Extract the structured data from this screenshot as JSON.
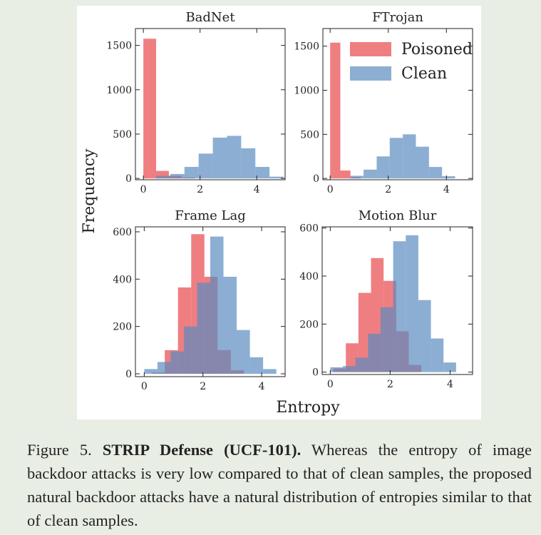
{
  "figure": {
    "xlabel": "Entropy",
    "ylabel": "Frequency"
  },
  "chart_data": [
    {
      "type": "histogram",
      "title": "BadNet",
      "xlim": [
        -0.28,
        5.0
      ],
      "ylim": [
        -15,
        1690
      ],
      "xticks": [
        0,
        2,
        4
      ],
      "yticks": [
        0,
        500,
        1000,
        1500
      ],
      "series": [
        {
          "color": "#e8474c",
          "alpha": 0.7,
          "bins": [
            0,
            0.45,
            0.9,
            1.35,
            1.8
          ],
          "values": [
            1575,
            85,
            30,
            10
          ]
        },
        {
          "color": "#5b8bc0",
          "alpha": 0.7,
          "bins": [
            0.45,
            0.95,
            1.45,
            1.95,
            2.45,
            2.95,
            3.45,
            3.95,
            4.45,
            4.95
          ],
          "values": [
            30,
            50,
            130,
            280,
            460,
            480,
            340,
            130,
            20
          ]
        }
      ]
    },
    {
      "type": "histogram",
      "title": "FTrojan",
      "xlim": [
        -0.25,
        4.9
      ],
      "ylim": [
        -15,
        1700
      ],
      "xticks": [
        0,
        2,
        4
      ],
      "yticks": [
        0,
        500,
        1000,
        1500
      ],
      "legend": "upper right",
      "series": [
        {
          "name": "Poisoned",
          "color": "#e8474c",
          "alpha": 0.7,
          "bins": [
            0,
            0.35,
            0.7,
            1.05
          ],
          "values": [
            1540,
            90,
            15
          ]
        },
        {
          "name": "Clean",
          "color": "#5b8bc0",
          "alpha": 0.7,
          "bins": [
            0.7,
            1.15,
            1.6,
            2.05,
            2.5,
            2.95,
            3.4,
            3.85,
            4.3
          ],
          "values": [
            30,
            100,
            250,
            460,
            500,
            360,
            130,
            25
          ]
        }
      ]
    },
    {
      "type": "histogram",
      "title": "Frame Lag",
      "xlim": [
        -0.3,
        4.8
      ],
      "ylim": [
        -12,
        621
      ],
      "xticks": [
        0,
        2,
        4
      ],
      "yticks": [
        0,
        200,
        400,
        600
      ],
      "series": [
        {
          "color": "#e8474c",
          "alpha": 0.7,
          "bins": [
            0.25,
            0.7,
            1.15,
            1.6,
            2.05,
            2.5,
            2.95,
            3.4
          ],
          "values": [
            5,
            100,
            365,
            590,
            410,
            100,
            15
          ]
        },
        {
          "color": "#5b8bc0",
          "alpha": 0.7,
          "bins": [
            0,
            0.45,
            0.9,
            1.35,
            1.8,
            2.25,
            2.7,
            3.15,
            3.6,
            4.05,
            4.5
          ],
          "values": [
            20,
            50,
            95,
            200,
            385,
            580,
            410,
            185,
            70,
            20
          ]
        }
      ]
    },
    {
      "type": "histogram",
      "title": "Motion Blur",
      "xlim": [
        -0.27,
        4.75
      ],
      "ylim": [
        -10,
        605
      ],
      "xticks": [
        0,
        2,
        4
      ],
      "yticks": [
        0,
        200,
        400,
        600
      ],
      "series": [
        {
          "color": "#e8474c",
          "alpha": 0.7,
          "bins": [
            0.1,
            0.52,
            0.94,
            1.36,
            1.78,
            2.2,
            2.62,
            3.04
          ],
          "values": [
            15,
            120,
            330,
            475,
            380,
            170,
            30
          ]
        },
        {
          "color": "#5b8bc0",
          "alpha": 0.7,
          "bins": [
            0,
            0.42,
            0.84,
            1.26,
            1.68,
            2.1,
            2.52,
            2.94,
            3.36,
            3.78,
            4.2
          ],
          "values": [
            20,
            25,
            60,
            160,
            270,
            545,
            570,
            300,
            140,
            40
          ]
        }
      ]
    }
  ],
  "caption": {
    "label": "Figure 5.",
    "bold": "STRIP Defense (UCF-101).",
    "text": "Whereas the entropy of image backdoor attacks is very low compared to that of clean samples, the proposed natural backdoor attacks have a natural distribution of entropies similar to that of clean samples."
  }
}
